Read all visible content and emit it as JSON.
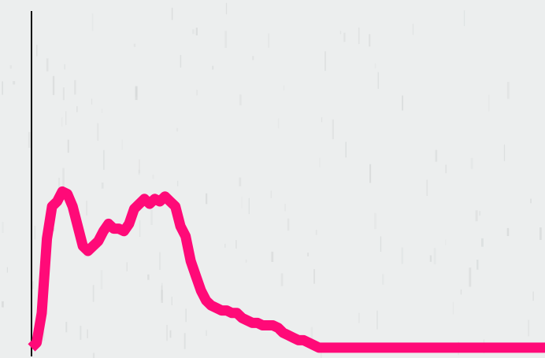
{
  "chart_data": {
    "type": "line",
    "title": "",
    "xlabel": "",
    "ylabel": "",
    "grid": false,
    "legend": "none",
    "xlim": [
      0,
      100
    ],
    "ylim": [
      0,
      100
    ],
    "colors": {
      "background": "#eceeee",
      "texture": "#c9cccc",
      "axis": "#111111",
      "line": "#ff0a78"
    },
    "series": [
      {
        "x": [
          0,
          1,
          2,
          3,
          4,
          5,
          6,
          7,
          8,
          9,
          10,
          11,
          12,
          13,
          14,
          15,
          16,
          17,
          18,
          19,
          20,
          21,
          22,
          23,
          24,
          25,
          26,
          27,
          28,
          29,
          30,
          31,
          32,
          33,
          34,
          35,
          36,
          37,
          38,
          39,
          40,
          41,
          42,
          43,
          44,
          45,
          46,
          47,
          48,
          49,
          50,
          51,
          52,
          53,
          54,
          55,
          56,
          57,
          58,
          59,
          60,
          61,
          62,
          63,
          64,
          65,
          66,
          67,
          68,
          69,
          70,
          71,
          72,
          73,
          74,
          75,
          76,
          77,
          78,
          79,
          80,
          81,
          82,
          83,
          84,
          85,
          86,
          87,
          88,
          89,
          90,
          91,
          92,
          93,
          94,
          95,
          96,
          97,
          98,
          99,
          100
        ],
        "values": [
          1,
          3,
          15,
          45,
          58,
          60,
          64,
          63,
          58,
          50,
          42,
          40,
          42,
          44,
          48,
          51,
          49,
          49,
          48,
          51,
          57,
          59,
          61,
          59,
          61,
          60,
          62,
          60,
          58,
          50,
          46,
          36,
          30,
          24,
          20,
          18,
          17,
          16,
          16,
          15,
          15,
          13,
          12,
          11,
          11,
          10,
          10,
          10,
          9,
          7,
          6,
          5,
          4,
          4,
          3,
          2,
          1,
          1,
          1,
          1,
          1,
          1,
          1,
          1,
          1,
          1,
          1,
          1,
          1,
          1,
          1,
          1,
          1,
          1,
          1,
          1,
          1,
          1,
          1,
          1,
          1,
          1,
          1,
          1,
          1,
          1,
          1,
          1,
          1,
          1,
          1,
          1,
          1,
          1,
          1,
          1,
          1,
          1,
          1,
          1,
          1
        ]
      }
    ]
  }
}
